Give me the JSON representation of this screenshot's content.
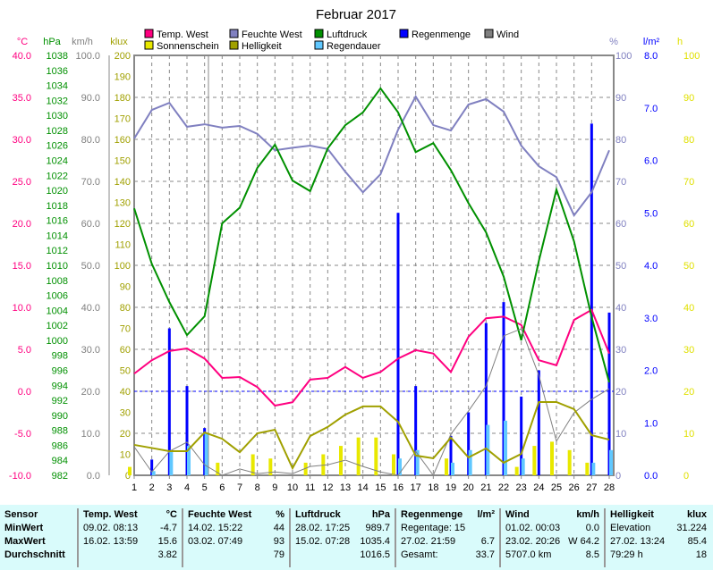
{
  "chart_data": {
    "type": "line",
    "title": "Februar 2017",
    "x": [
      1,
      2,
      3,
      4,
      5,
      6,
      7,
      8,
      9,
      10,
      11,
      12,
      13,
      14,
      15,
      16,
      17,
      18,
      19,
      20,
      21,
      22,
      23,
      24,
      25,
      26,
      27,
      28
    ],
    "x_ticks": [
      "1",
      "2",
      "3",
      "4",
      "5",
      "6",
      "7",
      "8",
      "9",
      "10",
      "11",
      "12",
      "13",
      "14",
      "15",
      "16",
      "17",
      "18",
      "19",
      "20",
      "21",
      "22",
      "23",
      "24",
      "25",
      "26",
      "27",
      "28"
    ],
    "axes": {
      "temp": {
        "unit": "°C",
        "range": [
          -10,
          40
        ],
        "ticks": [
          "40.0",
          "35.0",
          "30.0",
          "25.0",
          "20.0",
          "15.0",
          "10.0",
          "5.0",
          "0.0",
          "-5.0",
          "-10.0"
        ],
        "color": "#ff0080"
      },
      "pressure": {
        "unit": "hPa",
        "range": [
          982,
          1038
        ],
        "ticks": [
          "1038",
          "1036",
          "1034",
          "1032",
          "1030",
          "1028",
          "1026",
          "1024",
          "1022",
          "1020",
          "1018",
          "1016",
          "1014",
          "1012",
          "1010",
          "1008",
          "1006",
          "1004",
          "1002",
          "1000",
          "998",
          "996",
          "994",
          "992",
          "990",
          "988",
          "986",
          "984",
          "982"
        ],
        "color": "#009000"
      },
      "wind": {
        "unit": "km/h",
        "range": [
          0,
          100
        ],
        "ticks": [
          "100.0",
          "90.0",
          "80.0",
          "70.0",
          "60.0",
          "50.0",
          "40.0",
          "30.0",
          "20.0",
          "10.0",
          "0.0"
        ],
        "color": "#808080"
      },
      "bright": {
        "unit": "klux",
        "range": [
          0,
          200
        ],
        "ticks": [
          "200",
          "190",
          "180",
          "170",
          "160",
          "150",
          "140",
          "130",
          "120",
          "110",
          "100",
          "90",
          "80",
          "70",
          "60",
          "50",
          "40",
          "30",
          "20",
          "10",
          "0"
        ],
        "color": "#a0a000"
      },
      "humidity": {
        "unit": "%",
        "range": [
          0,
          100
        ],
        "ticks": [
          "100",
          "90",
          "80",
          "70",
          "60",
          "50",
          "40",
          "30",
          "20",
          "10",
          "0"
        ],
        "color": "#8080c0"
      },
      "rain": {
        "unit": "l/m²",
        "range": [
          0,
          8
        ],
        "ticks": [
          "8.0",
          "7.0",
          "6.0",
          "5.0",
          "4.0",
          "3.0",
          "2.0",
          "1.0",
          "0.0"
        ],
        "color": "#0000ff"
      },
      "hours": {
        "unit": "h",
        "range": [
          0,
          100
        ],
        "ticks": [
          "100",
          "90",
          "80",
          "70",
          "60",
          "50",
          "40",
          "30",
          "20",
          "10",
          "0"
        ],
        "color": "#e0e000"
      }
    },
    "series": [
      {
        "name": "Temp. West",
        "axis": "temp",
        "kind": "line",
        "color": "#ff0080",
        "values": [
          2.1,
          3.7,
          4.8,
          5.1,
          3.9,
          1.6,
          1.7,
          0.5,
          -1.7,
          -1.3,
          1.4,
          1.6,
          2.9,
          1.6,
          2.3,
          3.9,
          4.9,
          4.5,
          2.3,
          6.5,
          8.7,
          8.9,
          7.9,
          3.7,
          3.1,
          8.5,
          9.7,
          4.5
        ]
      },
      {
        "name": "Feuchte West",
        "axis": "humidity",
        "kind": "line",
        "color": "#8080c0",
        "values": [
          80.2,
          87,
          88.7,
          83,
          83.6,
          82.8,
          83.2,
          81.3,
          77.4,
          78,
          78.5,
          77.7,
          72.3,
          67.4,
          71.7,
          82.3,
          90.2,
          83.4,
          82.1,
          88.3,
          89.6,
          86.6,
          78.5,
          73.6,
          71,
          61.9,
          67.4,
          77.4
        ]
      },
      {
        "name": "Luftdruck",
        "axis": "pressure",
        "kind": "line",
        "color": "#009000",
        "values": [
          1017.6,
          1010.2,
          1005.1,
          1000.7,
          1003.2,
          1015.6,
          1017.7,
          1023,
          1026.1,
          1021.3,
          1019.9,
          1025.6,
          1028.7,
          1030.4,
          1033.6,
          1030.4,
          1025.1,
          1026.3,
          1022.7,
          1018.3,
          1014.4,
          1008.5,
          1000,
          1010.6,
          1020.1,
          1013.2,
          1003.1,
          994.4
        ]
      },
      {
        "name": "Regenmenge",
        "axis": "rain",
        "kind": "bar",
        "color": "#0000ff",
        "values": [
          0,
          0.3,
          2.8,
          1.7,
          0.9,
          0,
          0,
          0,
          0,
          0,
          0,
          0,
          0,
          0,
          0,
          5.0,
          1.7,
          0,
          0.75,
          1.2,
          2.9,
          3.3,
          1.5,
          2.0,
          0,
          0,
          6.7,
          3.1
        ]
      },
      {
        "name": "Wind",
        "axis": "wind",
        "kind": "line",
        "color": "#808080",
        "values": [
          6.8,
          0.8,
          5.7,
          7.9,
          2.5,
          0,
          1.5,
          0.4,
          0.8,
          0.4,
          2.1,
          2.5,
          3.6,
          2.1,
          0.8,
          0,
          5.7,
          0,
          9.8,
          15.3,
          21.3,
          33.2,
          34.9,
          23.8,
          8.1,
          14.9,
          18.1,
          20.6
        ]
      },
      {
        "name": "Sonnenschein",
        "axis": "hours",
        "kind": "bar",
        "color": "#e8e800",
        "values": [
          2,
          0,
          0,
          0,
          0,
          3,
          0,
          5,
          4,
          0,
          3,
          5,
          7,
          9,
          9,
          5,
          0,
          0,
          4,
          0,
          0,
          0,
          2,
          7,
          8,
          6,
          3,
          0
        ]
      },
      {
        "name": "Helligkeit",
        "axis": "bright",
        "kind": "line",
        "color": "#a0a000",
        "values": [
          14.5,
          13,
          11.5,
          11.5,
          20.4,
          17.4,
          11,
          20,
          21.7,
          3.4,
          18.7,
          23,
          28.9,
          32.8,
          32.8,
          25.5,
          9.4,
          8.1,
          17.9,
          8.5,
          12.8,
          6,
          10.2,
          34.9,
          34.9,
          31.5,
          19.1,
          17
        ]
      },
      {
        "name": "Regendauer",
        "axis": "hours",
        "kind": "bar",
        "color": "#60c8ff",
        "values": [
          0,
          1,
          6,
          7,
          10,
          0,
          0,
          0,
          0,
          0,
          0,
          0,
          0,
          0,
          0,
          4,
          6,
          0,
          3,
          6,
          12,
          13,
          4,
          0,
          0,
          0,
          3,
          6
        ]
      }
    ],
    "legend": [
      {
        "label": "Temp. West",
        "color": "#ff0080"
      },
      {
        "label": "Feuchte West",
        "color": "#8080c0"
      },
      {
        "label": "Luftdruck",
        "color": "#009000"
      },
      {
        "label": "Regenmenge",
        "color": "#0000ff"
      },
      {
        "label": "Wind",
        "color": "#808080"
      },
      {
        "label": "Sonnenschein",
        "color": "#e8e800"
      },
      {
        "label": "Helligkeit",
        "color": "#a0a000"
      },
      {
        "label": "Regendauer",
        "color": "#60c8ff"
      }
    ],
    "legend_placement": "top",
    "grid": true
  },
  "table": [
    {
      "rows": [
        [
          "Sensor",
          ""
        ],
        [
          "MinWert",
          ""
        ],
        [
          "MaxWert",
          ""
        ],
        [
          "Durchschnitt",
          ""
        ]
      ],
      "bold": true
    },
    {
      "rows": [
        [
          "Temp. West",
          "°C"
        ],
        [
          "09.02.  08:13",
          "-4.7"
        ],
        [
          "16.02.  13:59",
          "15.6"
        ],
        [
          "",
          "3.82"
        ]
      ]
    },
    {
      "rows": [
        [
          "Feuchte West",
          "%"
        ],
        [
          "14.02.  15:22",
          "44"
        ],
        [
          "03.02.  07:49",
          "93"
        ],
        [
          "",
          "79"
        ]
      ]
    },
    {
      "rows": [
        [
          "Luftdruck",
          "hPa"
        ],
        [
          "28.02.  17:25",
          "989.7"
        ],
        [
          "15.02.  07:28",
          "1035.4"
        ],
        [
          "",
          "1016.5"
        ]
      ]
    },
    {
      "rows": [
        [
          "Regenmenge",
          "l/m²"
        ],
        [
          "Regentage: 15",
          ""
        ],
        [
          "27.02.  21:59",
          "6.7"
        ],
        [
          "Gesamt:",
          "33.7"
        ]
      ]
    },
    {
      "rows": [
        [
          "Wind",
          "km/h"
        ],
        [
          "01.02.  00:03",
          "0.0"
        ],
        [
          "23.02.  20:26",
          "W 64.2"
        ],
        [
          "5707.0 km",
          "8.5"
        ]
      ]
    },
    {
      "rows": [
        [
          "Helligkeit",
          "klux"
        ],
        [
          "Elevation",
          "31.224"
        ],
        [
          "27.02.  13:24",
          "85.4"
        ],
        [
          "79:29 h",
          "18"
        ]
      ]
    }
  ]
}
